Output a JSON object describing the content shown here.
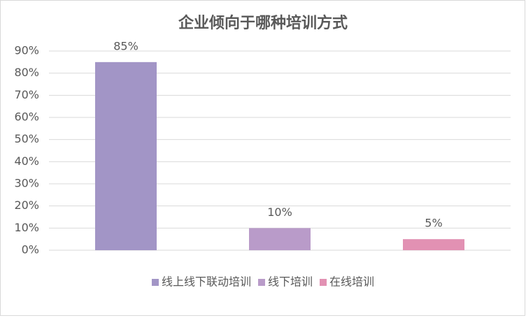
{
  "chart_data": {
    "type": "bar",
    "title": "企业倾向于哪种培训方式",
    "categories": [
      "线上线下联动培训",
      "线下培训",
      "在线培训"
    ],
    "values": [
      85,
      10,
      5
    ],
    "value_labels": [
      "85%",
      "10%",
      "5%"
    ],
    "colors": [
      "#a295c6",
      "#b99bc9",
      "#e291b3"
    ],
    "ylim": [
      0,
      90
    ],
    "yticks": [
      {
        "value": 0,
        "label": "0%"
      },
      {
        "value": 10,
        "label": "10%"
      },
      {
        "value": 20,
        "label": "20%"
      },
      {
        "value": 30,
        "label": "30%"
      },
      {
        "value": 40,
        "label": "40%"
      },
      {
        "value": 50,
        "label": "50%"
      },
      {
        "value": 60,
        "label": "60%"
      },
      {
        "value": 70,
        "label": "70%"
      },
      {
        "value": 80,
        "label": "80%"
      },
      {
        "value": 90,
        "label": "90%"
      }
    ],
    "grid": true
  }
}
